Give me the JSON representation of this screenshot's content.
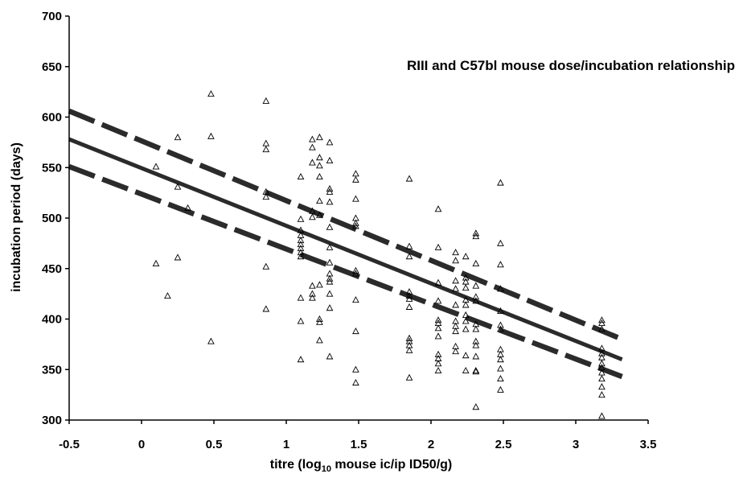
{
  "chart_data": {
    "type": "scatter",
    "title": "RIII and C57bl mouse dose/incubation relationship",
    "xlabel": {
      "prefix": "titre (log",
      "subscript": "10",
      "suffix": " mouse ic/ip ID50/g)"
    },
    "ylabel": "incubation period (days)",
    "xlim": [
      -0.5,
      3.5
    ],
    "ylim": [
      300,
      700
    ],
    "x_ticks": [
      -0.5,
      0,
      0.5,
      1,
      1.5,
      2,
      2.5,
      3,
      3.5
    ],
    "x_tick_labels": [
      "-0.5",
      "0",
      "0.5",
      "1",
      "1.5",
      "2",
      "2.5",
      "3",
      "3.5"
    ],
    "y_ticks": [
      300,
      350,
      400,
      450,
      500,
      550,
      600,
      650,
      700
    ],
    "y_tick_labels": [
      "300",
      "350",
      "400",
      "450",
      "500",
      "550",
      "600",
      "650",
      "700"
    ],
    "grid": false,
    "marker": "open-triangle",
    "points": [
      [
        0.1,
        551
      ],
      [
        0.1,
        455
      ],
      [
        0.18,
        423
      ],
      [
        0.25,
        580
      ],
      [
        0.25,
        531
      ],
      [
        0.25,
        461
      ],
      [
        0.32,
        510
      ],
      [
        0.48,
        623
      ],
      [
        0.48,
        581
      ],
      [
        0.48,
        378
      ],
      [
        0.86,
        616
      ],
      [
        0.86,
        574
      ],
      [
        0.86,
        568
      ],
      [
        0.86,
        526
      ],
      [
        0.86,
        521
      ],
      [
        0.86,
        452
      ],
      [
        0.86,
        410
      ],
      [
        1.1,
        541
      ],
      [
        1.1,
        499
      ],
      [
        1.1,
        488
      ],
      [
        1.1,
        483
      ],
      [
        1.1,
        478
      ],
      [
        1.1,
        474
      ],
      [
        1.1,
        470
      ],
      [
        1.1,
        466
      ],
      [
        1.1,
        462
      ],
      [
        1.1,
        421
      ],
      [
        1.1,
        398
      ],
      [
        1.1,
        360
      ],
      [
        1.18,
        578
      ],
      [
        1.18,
        570
      ],
      [
        1.18,
        555
      ],
      [
        1.18,
        507
      ],
      [
        1.18,
        501
      ],
      [
        1.18,
        433
      ],
      [
        1.18,
        425
      ],
      [
        1.18,
        421
      ],
      [
        1.23,
        580
      ],
      [
        1.23,
        560
      ],
      [
        1.23,
        552
      ],
      [
        1.23,
        541
      ],
      [
        1.23,
        517
      ],
      [
        1.23,
        503
      ],
      [
        1.23,
        434
      ],
      [
        1.23,
        400
      ],
      [
        1.23,
        397
      ],
      [
        1.23,
        379
      ],
      [
        1.3,
        575
      ],
      [
        1.3,
        557
      ],
      [
        1.3,
        529
      ],
      [
        1.3,
        526
      ],
      [
        1.3,
        516
      ],
      [
        1.3,
        491
      ],
      [
        1.3,
        471
      ],
      [
        1.3,
        456
      ],
      [
        1.3,
        445
      ],
      [
        1.3,
        440
      ],
      [
        1.3,
        437
      ],
      [
        1.3,
        425
      ],
      [
        1.3,
        411
      ],
      [
        1.3,
        363
      ],
      [
        1.48,
        544
      ],
      [
        1.48,
        538
      ],
      [
        1.48,
        519
      ],
      [
        1.48,
        500
      ],
      [
        1.48,
        495
      ],
      [
        1.48,
        492
      ],
      [
        1.48,
        448
      ],
      [
        1.48,
        445
      ],
      [
        1.48,
        419
      ],
      [
        1.48,
        388
      ],
      [
        1.48,
        350
      ],
      [
        1.48,
        337
      ],
      [
        1.85,
        539
      ],
      [
        1.85,
        472
      ],
      [
        1.85,
        462
      ],
      [
        1.85,
        427
      ],
      [
        1.85,
        423
      ],
      [
        1.85,
        420
      ],
      [
        1.85,
        412
      ],
      [
        1.85,
        381
      ],
      [
        1.85,
        378
      ],
      [
        1.85,
        374
      ],
      [
        1.85,
        369
      ],
      [
        1.85,
        342
      ],
      [
        2.05,
        509
      ],
      [
        2.05,
        471
      ],
      [
        2.05,
        436
      ],
      [
        2.05,
        418
      ],
      [
        2.05,
        399
      ],
      [
        2.05,
        396
      ],
      [
        2.05,
        391
      ],
      [
        2.05,
        383
      ],
      [
        2.05,
        365
      ],
      [
        2.05,
        361
      ],
      [
        2.05,
        356
      ],
      [
        2.05,
        349
      ],
      [
        2.17,
        466
      ],
      [
        2.17,
        458
      ],
      [
        2.17,
        438
      ],
      [
        2.17,
        430
      ],
      [
        2.17,
        414
      ],
      [
        2.17,
        398
      ],
      [
        2.17,
        393
      ],
      [
        2.17,
        388
      ],
      [
        2.17,
        373
      ],
      [
        2.17,
        368
      ],
      [
        2.24,
        462
      ],
      [
        2.24,
        441
      ],
      [
        2.24,
        437
      ],
      [
        2.24,
        431
      ],
      [
        2.24,
        419
      ],
      [
        2.24,
        414
      ],
      [
        2.24,
        404
      ],
      [
        2.24,
        398
      ],
      [
        2.24,
        390
      ],
      [
        2.24,
        364
      ],
      [
        2.24,
        349
      ],
      [
        2.31,
        485
      ],
      [
        2.31,
        482
      ],
      [
        2.31,
        455
      ],
      [
        2.31,
        433
      ],
      [
        2.31,
        422
      ],
      [
        2.31,
        418
      ],
      [
        2.31,
        395
      ],
      [
        2.31,
        390
      ],
      [
        2.31,
        378
      ],
      [
        2.31,
        374
      ],
      [
        2.31,
        363
      ],
      [
        2.31,
        349
      ],
      [
        2.31,
        348
      ],
      [
        2.31,
        313
      ],
      [
        2.48,
        535
      ],
      [
        2.48,
        475
      ],
      [
        2.48,
        454
      ],
      [
        2.48,
        430
      ],
      [
        2.48,
        408
      ],
      [
        2.48,
        394
      ],
      [
        2.48,
        390
      ],
      [
        2.48,
        370
      ],
      [
        2.48,
        365
      ],
      [
        2.48,
        360
      ],
      [
        2.48,
        351
      ],
      [
        2.48,
        341
      ],
      [
        2.48,
        330
      ],
      [
        3.18,
        399
      ],
      [
        3.18,
        396
      ],
      [
        3.18,
        390
      ],
      [
        3.18,
        371
      ],
      [
        3.18,
        366
      ],
      [
        3.18,
        362
      ],
      [
        3.18,
        356
      ],
      [
        3.18,
        352
      ],
      [
        3.18,
        347
      ],
      [
        3.18,
        341
      ],
      [
        3.18,
        333
      ],
      [
        3.18,
        325
      ],
      [
        3.18,
        304
      ]
    ],
    "regression_line": {
      "style": "solid",
      "x": [
        -0.5,
        3.32
      ],
      "y": [
        578,
        360
      ]
    },
    "confidence_bands": [
      {
        "style": "dashed",
        "x": [
          -0.5,
          3.32
        ],
        "y": [
          606,
          380
        ]
      },
      {
        "style": "dashed",
        "x": [
          -0.5,
          3.32
        ],
        "y": [
          551,
          343
        ]
      }
    ]
  }
}
